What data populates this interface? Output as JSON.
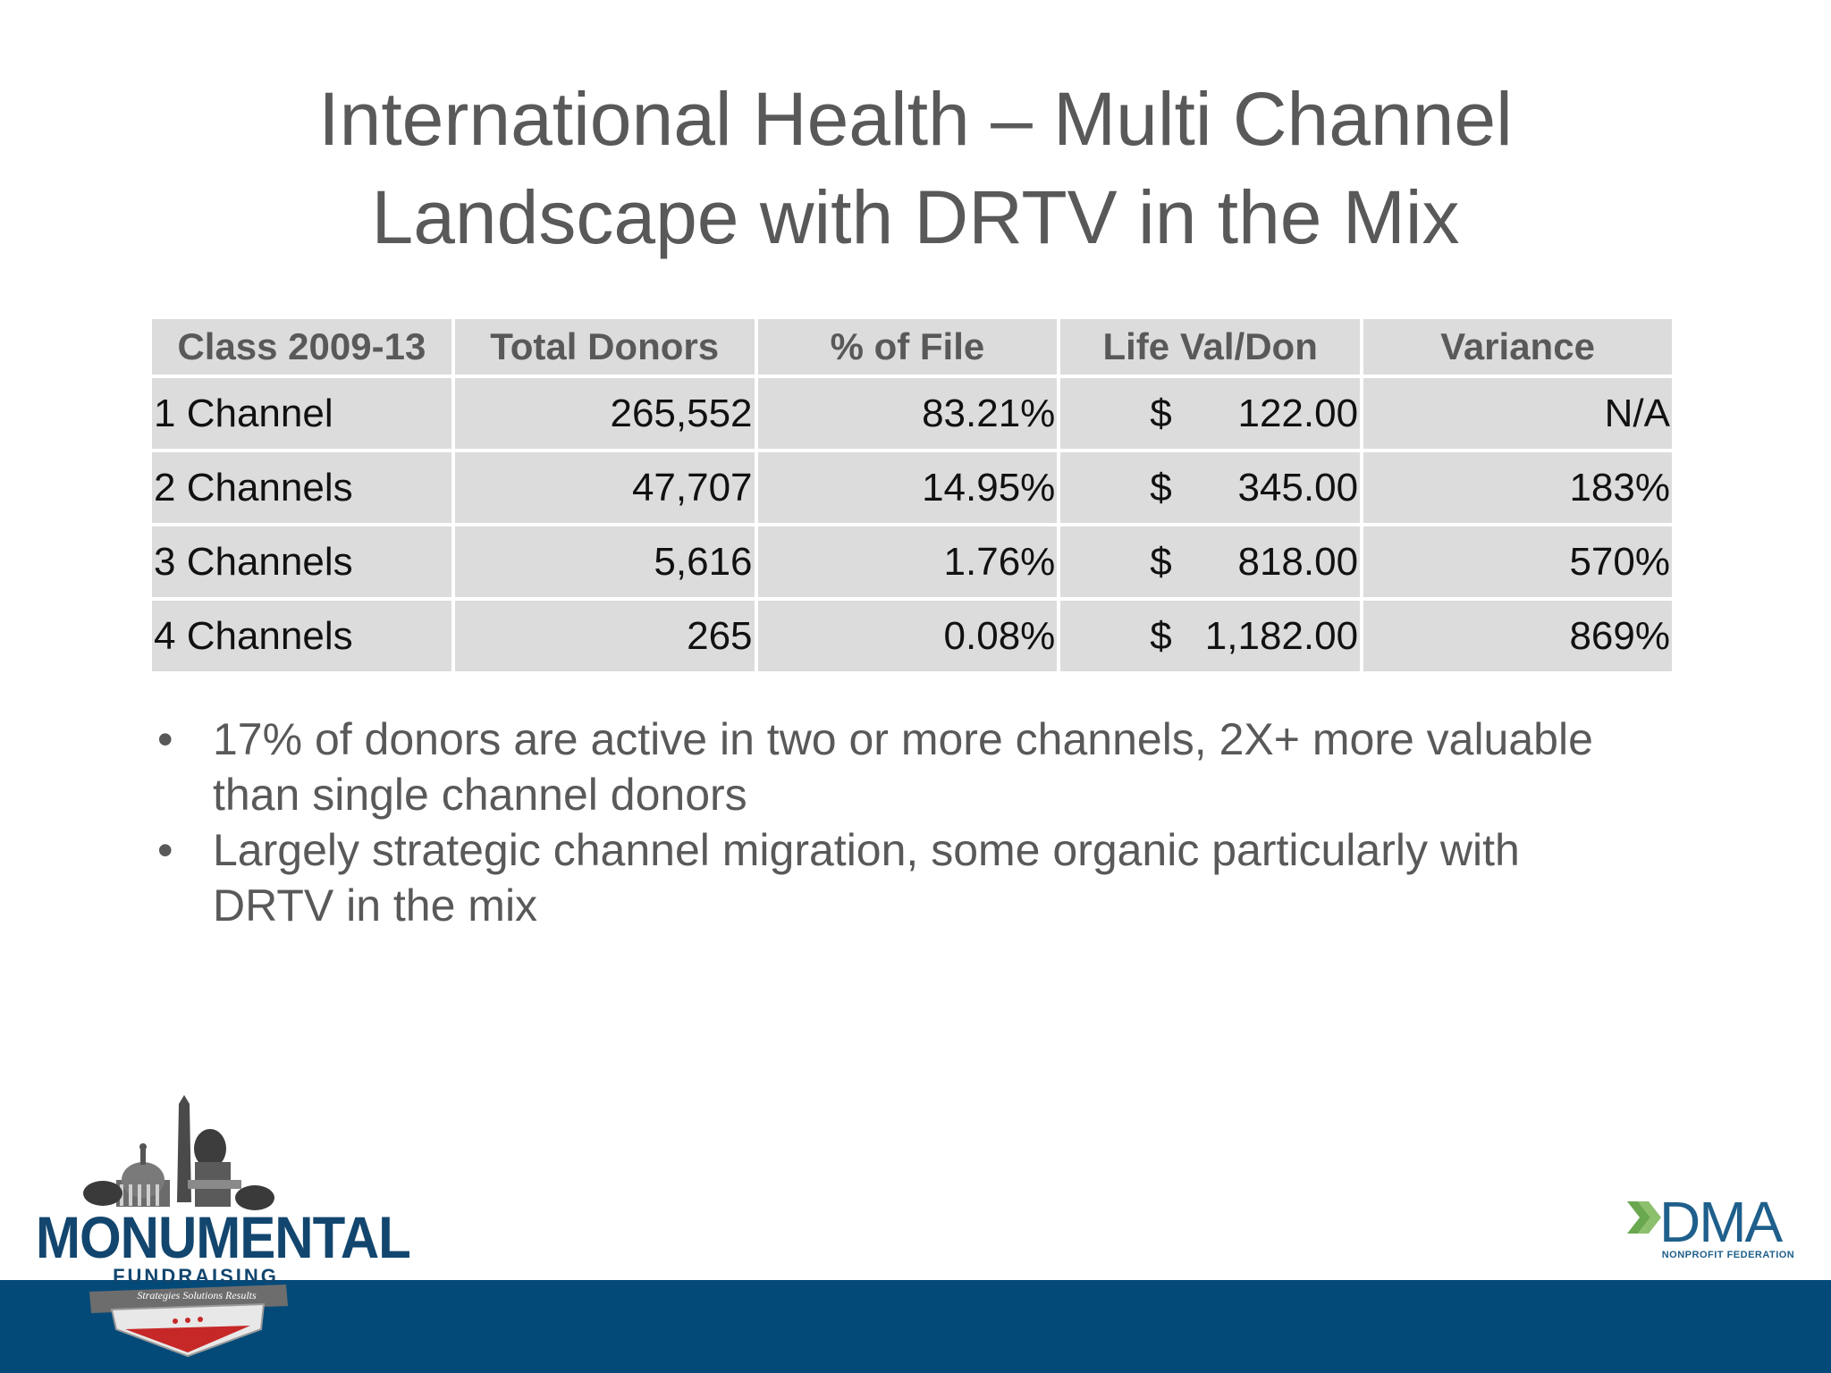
{
  "slide": {
    "title_line1": "International Health – Multi Channel",
    "title_line2": "Landscape with DRTV in the Mix"
  },
  "table": {
    "headers": [
      "Class 2009-13",
      "Total Donors",
      "% of File",
      "Life Val/Don",
      "Variance"
    ],
    "rows": [
      {
        "channel": "1 Channel",
        "total_donors": "265,552",
        "pct_file": "83.21%",
        "currency": "$",
        "life_val": "122.00",
        "variance": "N/A"
      },
      {
        "channel": "2 Channels",
        "total_donors": "47,707",
        "pct_file": "14.95%",
        "currency": "$",
        "life_val": "345.00",
        "variance": "183%"
      },
      {
        "channel": "3 Channels",
        "total_donors": "5,616",
        "pct_file": "1.76%",
        "currency": "$",
        "life_val": "818.00",
        "variance": "570%"
      },
      {
        "channel": "4 Channels",
        "total_donors": "265",
        "pct_file": "0.08%",
        "currency": "$",
        "life_val": "1,182.00",
        "variance": "869%"
      }
    ]
  },
  "bullets": {
    "marker": "•",
    "items": [
      "17% of donors are active in two or more channels, 2X+ more valuable than single channel donors",
      "Largely strategic channel migration, some organic particularly with DRTV in the mix"
    ]
  },
  "logos": {
    "left_name": "MONUMENTAL",
    "left_sub": "FUNDRAISING",
    "left_tagline": "Strategies  Solutions  Results",
    "right_name": "DMA",
    "right_sub": "NONPROFIT FEDERATION"
  },
  "colors": {
    "footer_band": "#044a79",
    "table_cell_bg": "#dcdcdc",
    "title_text": "#595959",
    "logo_blue": "#12466e",
    "dma_green": "#6aa84f"
  }
}
